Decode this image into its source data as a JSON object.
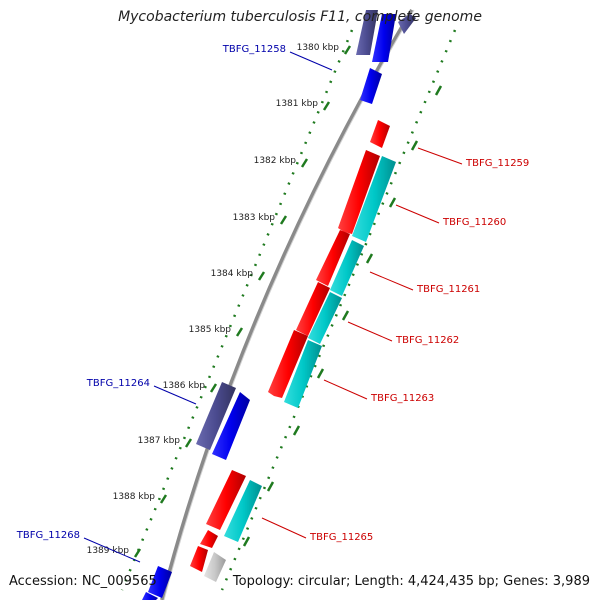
{
  "title": "Mycobacterium tuberculosis F11, complete genome",
  "footer": {
    "accession": "Accession: NC_009565",
    "topology": "Topology: circular; Length: 4,424,435 bp; Genes: 3,989"
  },
  "ticks": [
    "1380 kbp",
    "1381 kbp",
    "1382 kbp",
    "1383 kbp",
    "1384 kbp",
    "1385 kbp",
    "1386 kbp",
    "1387 kbp",
    "1388 kbp",
    "1389 kbp"
  ],
  "gene_labels": [
    {
      "name": "TBFG_11258",
      "side": "left"
    },
    {
      "name": "TBFG_11259",
      "side": "right"
    },
    {
      "name": "TBFG_11260",
      "side": "right"
    },
    {
      "name": "TBFG_11261",
      "side": "right"
    },
    {
      "name": "TBFG_11262",
      "side": "right"
    },
    {
      "name": "TBFG_11263",
      "side": "right"
    },
    {
      "name": "TBFG_11264",
      "side": "left"
    },
    {
      "name": "TBFG_11265",
      "side": "right"
    },
    {
      "name": "TBFG_11268",
      "side": "left"
    }
  ],
  "colors": {
    "backbone": "#8a8a8a",
    "tick": "#1f7a1f",
    "red_gene": "#ff0000",
    "cyan_gene": "#00cccc",
    "blue_gene": "#0000ee",
    "purple_gene": "#4b4b8f",
    "grey_gene": "#c8c8c8",
    "red_label": "#cc0000",
    "blue_label": "#0000aa"
  }
}
